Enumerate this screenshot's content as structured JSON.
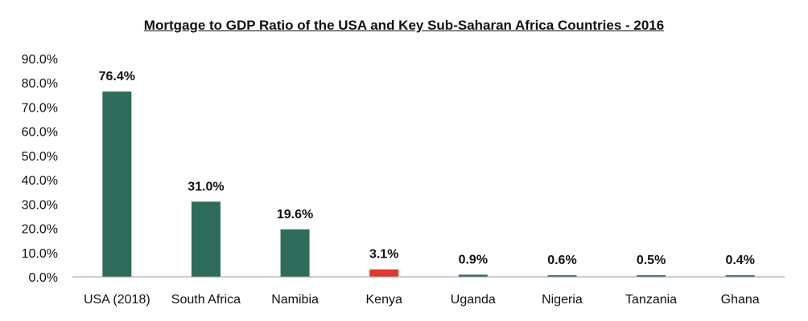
{
  "chart_data": {
    "type": "bar",
    "title": "Mortgage to GDP Ratio of the USA and Key Sub-Saharan Africa Countries - 2016",
    "xlabel": "",
    "ylabel": "",
    "categories": [
      "USA (2018)",
      "South Africa",
      "Namibia",
      "Kenya",
      "Uganda",
      "Nigeria",
      "Tanzania",
      "Ghana"
    ],
    "values": [
      76.4,
      31.0,
      19.6,
      3.1,
      0.9,
      0.6,
      0.5,
      0.4
    ],
    "data_labels": [
      "76.4%",
      "31.0%",
      "19.6%",
      "3.1%",
      "0.9%",
      "0.6%",
      "0.5%",
      "0.4%"
    ],
    "ylim": [
      0,
      90
    ],
    "yticks": [
      "0.0%",
      "10.0%",
      "20.0%",
      "30.0%",
      "40.0%",
      "50.0%",
      "60.0%",
      "70.0%",
      "80.0%",
      "90.0%"
    ],
    "ytick_values": [
      0,
      10,
      20,
      30,
      40,
      50,
      60,
      70,
      80,
      90
    ],
    "grid": false,
    "colors": {
      "bar": "#2E6B5A",
      "highlight": "#E03A2F",
      "highlight_category": "Kenya",
      "axis": "#999999"
    }
  }
}
